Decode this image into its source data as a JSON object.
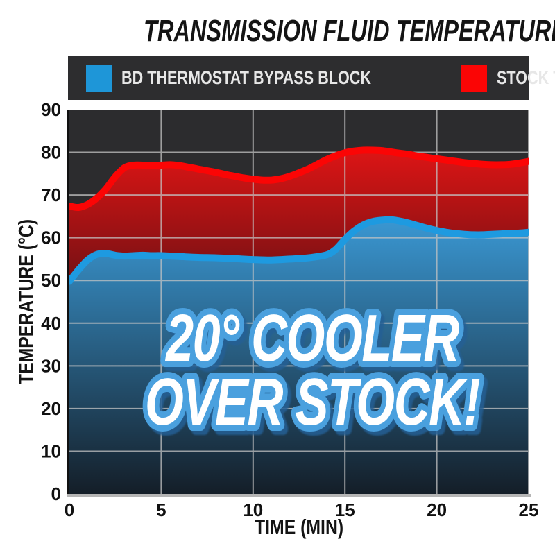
{
  "title": "TRANSMISSION FLUID TEMPERATURE",
  "legend": {
    "background": "#2d2d2f",
    "text_color": "#e7e7e7",
    "items": [
      {
        "label": "BD THERMOSTAT BYPASS BLOCK",
        "color": "#1e96d8"
      },
      {
        "label": "STOCK THERMOSTAT",
        "color": "#fb0505"
      }
    ]
  },
  "chart_data": {
    "type": "area",
    "title": "TRANSMISSION FLUID TEMPERATURE",
    "xlabel": "TIME (MIN)",
    "ylabel": "TEMPERATURE (°C)",
    "xlim": [
      0,
      25
    ],
    "ylim": [
      0,
      90
    ],
    "x_ticks": [
      0,
      5,
      10,
      15,
      20,
      25
    ],
    "y_ticks": [
      0,
      10,
      20,
      30,
      40,
      50,
      60,
      70,
      80,
      90
    ],
    "grid": true,
    "legend_position": "top",
    "plot_background": "#2c2c2e",
    "gridline_color": "#c4c4c4",
    "axis_line_left_color": "#111111",
    "axis_line_bottom_color": "#b5b5b5",
    "series": [
      {
        "name": "STOCK THERMOSTAT",
        "color": "#fb0505",
        "fill_top": "#dd1515",
        "fill_bottom": "#6f1013",
        "points": [
          [
            0,
            67.4
          ],
          [
            0.5,
            67.1
          ],
          [
            1,
            67.8
          ],
          [
            1.5,
            69.3
          ],
          [
            2,
            71.5
          ],
          [
            2.5,
            74.3
          ],
          [
            3,
            76.4
          ],
          [
            3.5,
            77.0
          ],
          [
            4,
            77.0
          ],
          [
            4.5,
            76.9
          ],
          [
            5,
            77.0
          ],
          [
            5.5,
            77.1
          ],
          [
            6,
            76.9
          ],
          [
            6.5,
            76.5
          ],
          [
            7,
            76.1
          ],
          [
            7.5,
            75.7
          ],
          [
            8,
            75.3
          ],
          [
            8.5,
            74.8
          ],
          [
            9,
            74.4
          ],
          [
            9.5,
            74.0
          ],
          [
            10,
            73.7
          ],
          [
            10.5,
            73.5
          ],
          [
            11,
            73.5
          ],
          [
            11.5,
            73.8
          ],
          [
            12,
            74.4
          ],
          [
            12.5,
            75.2
          ],
          [
            13,
            76.1
          ],
          [
            13.5,
            77.2
          ],
          [
            14,
            78.3
          ],
          [
            14.5,
            79.2
          ],
          [
            15,
            79.9
          ],
          [
            15.5,
            80.3
          ],
          [
            16,
            80.5
          ],
          [
            16.5,
            80.5
          ],
          [
            17,
            80.4
          ],
          [
            17.5,
            80.1
          ],
          [
            18,
            79.8
          ],
          [
            18.5,
            79.5
          ],
          [
            19,
            79.1
          ],
          [
            19.5,
            78.8
          ],
          [
            20,
            78.5
          ],
          [
            20.5,
            78.2
          ],
          [
            21,
            77.9
          ],
          [
            21.5,
            77.6
          ],
          [
            22,
            77.4
          ],
          [
            22.5,
            77.2
          ],
          [
            23,
            77.1
          ],
          [
            23.5,
            77.1
          ],
          [
            24,
            77.2
          ],
          [
            24.5,
            77.5
          ],
          [
            25,
            77.9
          ]
        ]
      },
      {
        "name": "BD THERMOSTAT BYPASS BLOCK",
        "color": "#1e9ae0",
        "fill_top": "#3a97d2",
        "fill_bottom": "#141e28",
        "points": [
          [
            0,
            49.8
          ],
          [
            0.5,
            52.5
          ],
          [
            1,
            54.8
          ],
          [
            1.5,
            56.1
          ],
          [
            2,
            56.3
          ],
          [
            2.5,
            55.9
          ],
          [
            3,
            55.7
          ],
          [
            3.5,
            55.8
          ],
          [
            4,
            55.9
          ],
          [
            4.5,
            55.8
          ],
          [
            5,
            55.8
          ],
          [
            6,
            55.6
          ],
          [
            7,
            55.4
          ],
          [
            8,
            55.3
          ],
          [
            9,
            55.1
          ],
          [
            10,
            54.9
          ],
          [
            11,
            54.8
          ],
          [
            12,
            55.0
          ],
          [
            13,
            55.3
          ],
          [
            14,
            56.0
          ],
          [
            14.5,
            57.3
          ],
          [
            15,
            59.6
          ],
          [
            15.5,
            61.6
          ],
          [
            16,
            63.0
          ],
          [
            16.5,
            63.8
          ],
          [
            17,
            64.1
          ],
          [
            17.5,
            64.2
          ],
          [
            18,
            63.9
          ],
          [
            18.5,
            63.4
          ],
          [
            19,
            62.8
          ],
          [
            19.5,
            62.2
          ],
          [
            20,
            61.7
          ],
          [
            20.5,
            61.3
          ],
          [
            21,
            61.0
          ],
          [
            21.5,
            60.8
          ],
          [
            22,
            60.7
          ],
          [
            22.5,
            60.7
          ],
          [
            23,
            60.8
          ],
          [
            23.5,
            60.9
          ],
          [
            24,
            61.0
          ],
          [
            24.5,
            61.1
          ],
          [
            25,
            61.3
          ]
        ]
      }
    ],
    "annotation": {
      "line1": "20° COOLER",
      "line2": "OVER STOCK!",
      "fill": "#ffffff",
      "stroke": "#4aa0de"
    }
  }
}
